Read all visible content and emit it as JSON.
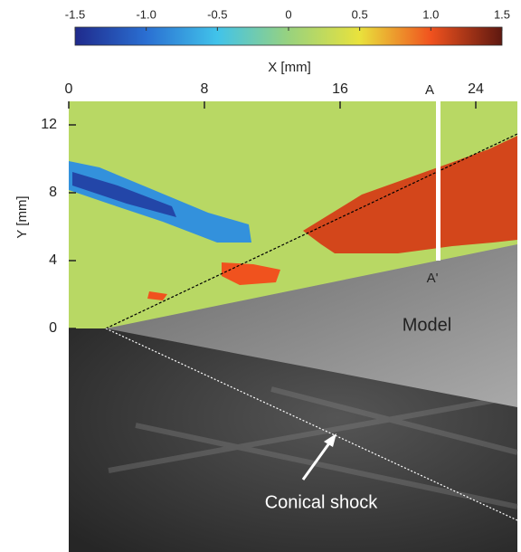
{
  "chart_data": {
    "type": "heatmap",
    "colorbar": {
      "lim": [
        -1.5,
        1.5
      ],
      "ticks": [
        -1.5,
        {
          "value": -1,
          "label": "-1.0"
        },
        -0.5,
        0,
        0.5,
        {
          "value": 1,
          "label": "1.0"
        },
        1.5
      ]
    },
    "colormap": [
      "#1f2a8c",
      "#2a6fd2",
      "#41c3ea",
      "#98d27e",
      "#e9e23c",
      "#f0521e",
      "#5e1810"
    ],
    "xlabel": "X [mm]",
    "ylabel": "Y [mm]",
    "xlim": [
      0,
      26.5
    ],
    "ylim": [
      0,
      13.4
    ],
    "xticks": [
      0,
      8,
      16,
      24
    ],
    "yticks": [
      0,
      4,
      8,
      12
    ],
    "field": {
      "values": [
        0.2,
        -0.8,
        -1.3,
        1.1,
        1.0,
        1.0
      ]
    },
    "annotations": {
      "section_top": "A",
      "section_bottom": "A'",
      "model": "Model",
      "shock": "Conical shock"
    }
  }
}
